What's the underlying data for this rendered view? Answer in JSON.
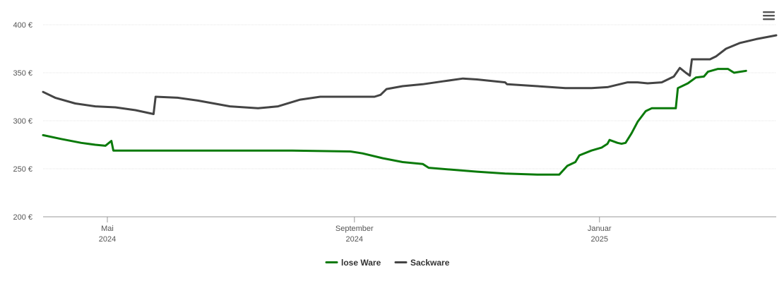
{
  "chart_data": {
    "type": "line",
    "title": "",
    "xlabel": "",
    "ylabel": "",
    "ylim": [
      200,
      400
    ],
    "yticks": [
      {
        "value": 200,
        "label": "200 €"
      },
      {
        "value": 250,
        "label": "250 €"
      },
      {
        "value": 300,
        "label": "300 €"
      },
      {
        "value": 350,
        "label": "350 €"
      },
      {
        "value": 400,
        "label": "400 €"
      }
    ],
    "xlim": [
      "2024-03-30",
      "2025-03-30"
    ],
    "xticks": [
      {
        "date": "2024-05-01",
        "month": "Mai",
        "year": "2024"
      },
      {
        "date": "2024-09-01",
        "month": "September",
        "year": "2024"
      },
      {
        "date": "2025-01-01",
        "month": "Januar",
        "year": "2025"
      }
    ],
    "grid": true,
    "legend_position": "bottom-center",
    "series": [
      {
        "name": "lose Ware",
        "color": "#0a7a0a",
        "points": [
          [
            "2024-03-30",
            285
          ],
          [
            "2024-04-08",
            281
          ],
          [
            "2024-04-18",
            277
          ],
          [
            "2024-04-25",
            275
          ],
          [
            "2024-04-30",
            274
          ],
          [
            "2024-05-03",
            279
          ],
          [
            "2024-05-04",
            269
          ],
          [
            "2024-06-01",
            269
          ],
          [
            "2024-07-01",
            269
          ],
          [
            "2024-08-01",
            269
          ],
          [
            "2024-08-30",
            268
          ],
          [
            "2024-09-05",
            266
          ],
          [
            "2024-09-15",
            261
          ],
          [
            "2024-09-25",
            257
          ],
          [
            "2024-10-05",
            255
          ],
          [
            "2024-10-08",
            251
          ],
          [
            "2024-10-20",
            249
          ],
          [
            "2024-11-01",
            247
          ],
          [
            "2024-11-15",
            245
          ],
          [
            "2024-12-01",
            244
          ],
          [
            "2024-12-12",
            244
          ],
          [
            "2024-12-16",
            253
          ],
          [
            "2024-12-20",
            257
          ],
          [
            "2024-12-22",
            264
          ],
          [
            "2024-12-28",
            269
          ],
          [
            "2025-01-02",
            272
          ],
          [
            "2025-01-05",
            276
          ],
          [
            "2025-01-06",
            280
          ],
          [
            "2025-01-10",
            277
          ],
          [
            "2025-01-12",
            276
          ],
          [
            "2025-01-14",
            277
          ],
          [
            "2025-01-17",
            287
          ],
          [
            "2025-01-20",
            299
          ],
          [
            "2025-01-24",
            310
          ],
          [
            "2025-01-27",
            313
          ],
          [
            "2025-02-05",
            313
          ],
          [
            "2025-02-08",
            313
          ],
          [
            "2025-02-09",
            334
          ],
          [
            "2025-02-14",
            339
          ],
          [
            "2025-02-18",
            345
          ],
          [
            "2025-02-22",
            346
          ],
          [
            "2025-02-24",
            351
          ],
          [
            "2025-03-01",
            354
          ],
          [
            "2025-03-06",
            354
          ],
          [
            "2025-03-09",
            350
          ],
          [
            "2025-03-12",
            351
          ],
          [
            "2025-03-15",
            352
          ]
        ]
      },
      {
        "name": "Sackware",
        "color": "#444444",
        "points": [
          [
            "2024-03-30",
            330
          ],
          [
            "2024-04-05",
            324
          ],
          [
            "2024-04-15",
            318
          ],
          [
            "2024-04-25",
            315
          ],
          [
            "2024-05-05",
            314
          ],
          [
            "2024-05-15",
            311
          ],
          [
            "2024-05-24",
            307
          ],
          [
            "2024-05-25",
            325
          ],
          [
            "2024-06-05",
            324
          ],
          [
            "2024-06-15",
            321
          ],
          [
            "2024-07-01",
            315
          ],
          [
            "2024-07-15",
            313
          ],
          [
            "2024-07-25",
            315
          ],
          [
            "2024-08-05",
            322
          ],
          [
            "2024-08-15",
            325
          ],
          [
            "2024-09-01",
            325
          ],
          [
            "2024-09-11",
            325
          ],
          [
            "2024-09-14",
            327
          ],
          [
            "2024-09-17",
            333
          ],
          [
            "2024-09-25",
            336
          ],
          [
            "2024-10-05",
            338
          ],
          [
            "2024-10-15",
            341
          ],
          [
            "2024-10-25",
            344
          ],
          [
            "2024-11-01",
            343
          ],
          [
            "2024-11-15",
            340
          ],
          [
            "2024-11-16",
            338
          ],
          [
            "2024-12-01",
            336
          ],
          [
            "2024-12-15",
            334
          ],
          [
            "2024-12-28",
            334
          ],
          [
            "2025-01-05",
            335
          ],
          [
            "2025-01-15",
            340
          ],
          [
            "2025-01-20",
            340
          ],
          [
            "2025-01-25",
            339
          ],
          [
            "2025-02-01",
            340
          ],
          [
            "2025-02-07",
            346
          ],
          [
            "2025-02-10",
            355
          ],
          [
            "2025-02-13",
            350
          ],
          [
            "2025-02-15",
            347
          ],
          [
            "2025-02-16",
            364
          ],
          [
            "2025-02-25",
            364
          ],
          [
            "2025-02-28",
            367
          ],
          [
            "2025-03-05",
            375
          ],
          [
            "2025-03-12",
            381
          ],
          [
            "2025-03-20",
            385
          ],
          [
            "2025-03-30",
            389
          ]
        ]
      }
    ]
  },
  "menu": {
    "icon": "hamburger-menu-icon"
  }
}
